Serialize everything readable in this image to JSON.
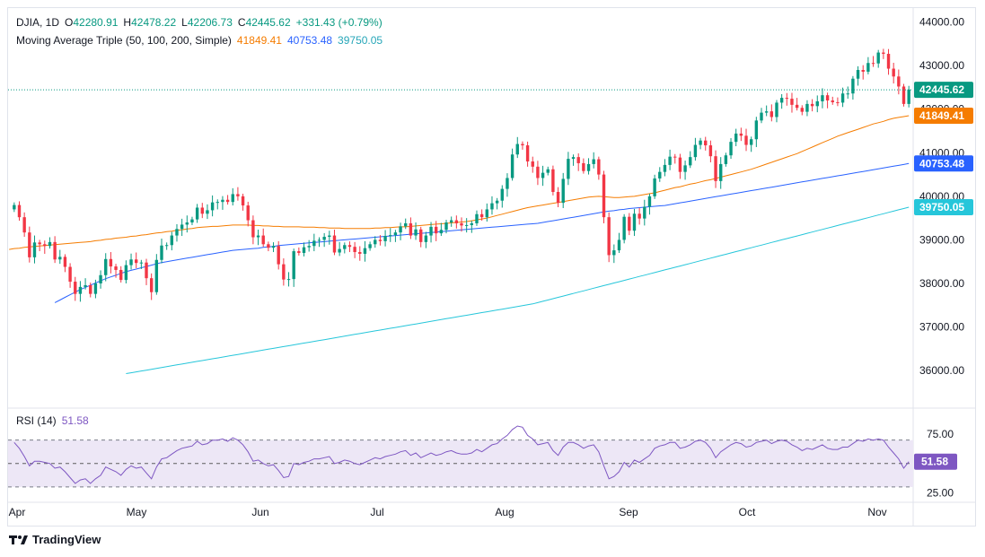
{
  "header": {
    "symbol": "DJIA, 1D",
    "open_label": "O",
    "open": "42280.91",
    "high_label": "H",
    "high": "42478.22",
    "low_label": "L",
    "low": "42206.73",
    "close_label": "C",
    "close": "42445.62",
    "change": "+331.43 (+0.79%)",
    "ma_title": "Moving Average Triple (50, 100, 200, Simple)",
    "ma50_value": "41849.41",
    "ma100_value": "40753.48",
    "ma200_value": "39750.05"
  },
  "rsi_panel": {
    "title": "RSI (14)",
    "value": "51.58"
  },
  "branding": {
    "logo_text": "TradingView"
  },
  "colors": {
    "up": "#089981",
    "down": "#f23645",
    "ma50": "#f57c00",
    "ma100": "#2962ff",
    "ma200": "#26c6da",
    "rsi": "#7e57c2",
    "rsi_band": "#ede7f6",
    "last_price_bg": "#089981"
  },
  "chart_data": {
    "type": "candlestick",
    "title": "DJIA, 1D",
    "x_axis": {
      "tick_labels": [
        "Apr",
        "May",
        "Jun",
        "Jul",
        "Aug",
        "Sep",
        "Oct",
        "Nov"
      ]
    },
    "price_axis": {
      "ylim": [
        35200,
        44300
      ],
      "tick_labels": [
        "36000.00",
        "37000.00",
        "38000.00",
        "39000.00",
        "40000.00",
        "41000.00",
        "42000.00",
        "43000.00",
        "44000.00"
      ],
      "tick_values": [
        36000,
        37000,
        38000,
        39000,
        40000,
        41000,
        42000,
        43000,
        44000
      ]
    },
    "last_price": 42445.62,
    "closes": [
      39800,
      39520,
      39170,
      38600,
      38940,
      38900,
      38860,
      38950,
      38550,
      38610,
      38380,
      38040,
      37760,
      37920,
      37960,
      37760,
      38000,
      38190,
      38560,
      38390,
      38310,
      38080,
      38420,
      38550,
      38470,
      38480,
      38120,
      37800,
      38540,
      38870,
      38880,
      39100,
      39250,
      39350,
      39400,
      39470,
      39740,
      39600,
      39680,
      39860,
      39870,
      39920,
      39870,
      40050,
      40000,
      39790,
      39450,
      39060,
      39100,
      38900,
      38820,
      38860,
      38440,
      38090,
      38100,
      38740,
      38700,
      38830,
      38860,
      38980,
      39000,
      39070,
      39100,
      38710,
      38790,
      38880,
      38840,
      38720,
      38680,
      38810,
      38900,
      39000,
      38970,
      39090,
      39110,
      39170,
      39310,
      39380,
      39100,
      39240,
      38950,
      39100,
      39300,
      39150,
      39230,
      39400,
      39450,
      39380,
      39330,
      39340,
      39380,
      39590,
      39520,
      39700,
      39840,
      39900,
      40170,
      40420,
      40960,
      41200,
      41170,
      40800,
      40680,
      40420,
      40540,
      40620,
      40100,
      39850,
      40400,
      40860,
      40900,
      40760,
      40580,
      40740,
      40850,
      40500,
      39520,
      38650,
      38760,
      39000,
      39530,
      39210,
      39600,
      39490,
      39760,
      40000,
      40410,
      40560,
      40720,
      40910,
      40890,
      40560,
      40710,
      40900,
      41180,
      41280,
      41170,
      40920,
      40350,
      40740,
      40940,
      41250,
      41440,
      41390,
      41180,
      41310,
      41740,
      41920,
      41950,
      41820,
      42150,
      42260,
      42240,
      42100,
      42030,
      41940,
      42120,
      42070,
      42180,
      42320,
      42200,
      42160,
      42150,
      42360,
      42360,
      42700,
      42900,
      42860,
      43060,
      43050,
      43300,
      43270,
      42930,
      42750,
      42520,
      42120,
      42450
    ],
    "ma50": [
      38780,
      38800,
      38810,
      38830,
      38840,
      38850,
      38860,
      38870,
      38880,
      38890,
      38900,
      38910,
      38920,
      38930,
      38940,
      38950,
      38960,
      38980,
      38990,
      39010,
      39020,
      39040,
      39050,
      39060,
      39080,
      39090,
      39110,
      39120,
      39140,
      39160,
      39170,
      39190,
      39200,
      39220,
      39230,
      39250,
      39260,
      39280,
      39290,
      39300,
      39310,
      39310,
      39320,
      39330,
      39340,
      39340,
      39340,
      39340,
      39330,
      39330,
      39320,
      39320,
      39310,
      39310,
      39300,
      39300,
      39300,
      39300,
      39290,
      39290,
      39290,
      39280,
      39280,
      39270,
      39270,
      39270,
      39260,
      39260,
      39260,
      39260,
      39260,
      39260,
      39270,
      39270,
      39280,
      39280,
      39290,
      39300,
      39300,
      39310,
      39320,
      39330,
      39340,
      39350,
      39360,
      39370,
      39380,
      39390,
      39400,
      39410,
      39420,
      39440,
      39460,
      39480,
      39500,
      39530,
      39560,
      39590,
      39620,
      39650,
      39680,
      39710,
      39740,
      39760,
      39780,
      39800,
      39820,
      39840,
      39860,
      39880,
      39900,
      39920,
      39940,
      39960,
      39980,
      39990,
      40000,
      39990,
      39980,
      39970,
      39970,
      39980,
      39990,
      40000,
      40020,
      40040,
      40060,
      40080,
      40110,
      40140,
      40170,
      40200,
      40220,
      40250,
      40280,
      40300,
      40330,
      40360,
      40380,
      40410,
      40440,
      40470,
      40500,
      40530,
      40560,
      40590,
      40620,
      40660,
      40700,
      40740,
      40780,
      40820,
      40860,
      40900,
      40940,
      40980,
      41030,
      41080,
      41130,
      41180,
      41230,
      41280,
      41330,
      41380,
      41420,
      41460,
      41500,
      41540,
      41580,
      41620,
      41660,
      41690,
      41720,
      41760,
      41790,
      41810,
      41830,
      41849
    ],
    "ma100": [
      37560,
      37620,
      37680,
      37740,
      37800,
      37860,
      37910,
      37960,
      38010,
      38060,
      38110,
      38150,
      38190,
      38230,
      38270,
      38300,
      38330,
      38360,
      38390,
      38420,
      38450,
      38480,
      38500,
      38520,
      38540,
      38560,
      38580,
      38600,
      38620,
      38640,
      38660,
      38680,
      38700,
      38720,
      38740,
      38760,
      38770,
      38780,
      38790,
      38800,
      38810,
      38830,
      38840,
      38850,
      38870,
      38880,
      38890,
      38900,
      38910,
      38920,
      38930,
      38940,
      38950,
      38960,
      38970,
      38980,
      38990,
      39000,
      39010,
      39020,
      39030,
      39040,
      39050,
      39060,
      39070,
      39080,
      39090,
      39100,
      39110,
      39120,
      39130,
      39140,
      39150,
      39160,
      39170,
      39180,
      39190,
      39200,
      39210,
      39220,
      39230,
      39240,
      39250,
      39260,
      39270,
      39280,
      39290,
      39300,
      39310,
      39320,
      39330,
      39340,
      39350,
      39360,
      39370,
      39380,
      39400,
      39420,
      39440,
      39460,
      39480,
      39500,
      39520,
      39540,
      39560,
      39580,
      39600,
      39620,
      39640,
      39660,
      39670,
      39690,
      39700,
      39720,
      39730,
      39740,
      39750,
      39760,
      39770,
      39780,
      39790,
      39810,
      39830,
      39850,
      39870,
      39890,
      39910,
      39930,
      39950,
      39970,
      39990,
      40010,
      40030,
      40050,
      40070,
      40090,
      40110,
      40130,
      40150,
      40170,
      40190,
      40210,
      40230,
      40250,
      40270,
      40290,
      40310,
      40330,
      40350,
      40370,
      40390,
      40410,
      40430,
      40450,
      40470,
      40490,
      40510,
      40530,
      40550,
      40570,
      40590,
      40610,
      40630,
      40650,
      40670,
      40690,
      40710,
      40730,
      40753
    ],
    "ma200": [
      35930,
      35950,
      35970,
      35990,
      36010,
      36030,
      36050,
      36070,
      36090,
      36110,
      36130,
      36150,
      36170,
      36190,
      36210,
      36230,
      36250,
      36270,
      36290,
      36310,
      36330,
      36350,
      36370,
      36390,
      36410,
      36430,
      36450,
      36470,
      36490,
      36510,
      36530,
      36550,
      36570,
      36590,
      36610,
      36630,
      36650,
      36670,
      36690,
      36710,
      36730,
      36750,
      36770,
      36790,
      36810,
      36830,
      36850,
      36870,
      36890,
      36910,
      36930,
      36950,
      36970,
      36990,
      37010,
      37030,
      37050,
      37070,
      37090,
      37110,
      37130,
      37150,
      37170,
      37190,
      37210,
      37230,
      37250,
      37270,
      37290,
      37310,
      37330,
      37350,
      37370,
      37390,
      37410,
      37430,
      37450,
      37470,
      37490,
      37510,
      37530,
      37560,
      37590,
      37620,
      37650,
      37680,
      37710,
      37740,
      37770,
      37800,
      37830,
      37860,
      37890,
      37920,
      37950,
      37980,
      38010,
      38040,
      38070,
      38100,
      38130,
      38160,
      38190,
      38220,
      38250,
      38280,
      38310,
      38340,
      38370,
      38400,
      38430,
      38460,
      38490,
      38520,
      38550,
      38580,
      38610,
      38640,
      38670,
      38700,
      38730,
      38760,
      38790,
      38820,
      38850,
      38880,
      38910,
      38940,
      38970,
      39000,
      39030,
      39060,
      39090,
      39120,
      39150,
      39180,
      39210,
      39240,
      39270,
      39300,
      39330,
      39360,
      39390,
      39420,
      39450,
      39480,
      39510,
      39540,
      39570,
      39600,
      39630,
      39660,
      39690,
      39720,
      39750
    ],
    "rsi_axis": {
      "ylim": [
        20,
        95
      ],
      "tick_labels": [
        "25.00",
        "75.00"
      ],
      "tick_values": [
        25,
        75
      ],
      "bands": [
        30,
        50,
        70
      ]
    },
    "rsi": [
      68,
      63,
      56,
      48,
      52,
      52,
      51,
      50,
      46,
      47,
      43,
      38,
      33,
      36,
      37,
      33,
      37,
      40,
      47,
      45,
      43,
      40,
      45,
      48,
      46,
      47,
      42,
      37,
      47,
      54,
      55,
      58,
      61,
      63,
      64,
      65,
      69,
      66,
      67,
      70,
      70,
      71,
      69,
      72,
      70,
      66,
      60,
      52,
      53,
      50,
      48,
      49,
      44,
      38,
      39,
      50,
      49,
      51,
      52,
      54,
      54,
      55,
      56,
      50,
      51,
      53,
      52,
      50,
      49,
      51,
      53,
      55,
      54,
      56,
      57,
      58,
      60,
      61,
      57,
      59,
      55,
      57,
      59,
      57,
      58,
      60,
      61,
      59,
      58,
      58,
      59,
      62,
      60,
      63,
      66,
      67,
      71,
      74,
      79,
      82,
      81,
      74,
      71,
      66,
      67,
      68,
      61,
      57,
      64,
      68,
      68,
      66,
      63,
      65,
      66,
      60,
      48,
      37,
      39,
      43,
      51,
      47,
      53,
      51,
      54,
      57,
      63,
      65,
      66,
      68,
      68,
      63,
      64,
      66,
      69,
      70,
      68,
      63,
      55,
      60,
      63,
      66,
      68,
      67,
      64,
      65,
      68,
      69,
      70,
      67,
      69,
      70,
      69,
      66,
      64,
      61,
      63,
      62,
      64,
      66,
      63,
      62,
      62,
      64,
      64,
      67,
      70,
      69,
      71,
      70,
      71,
      70,
      64,
      59,
      54,
      46,
      51.58
    ]
  }
}
